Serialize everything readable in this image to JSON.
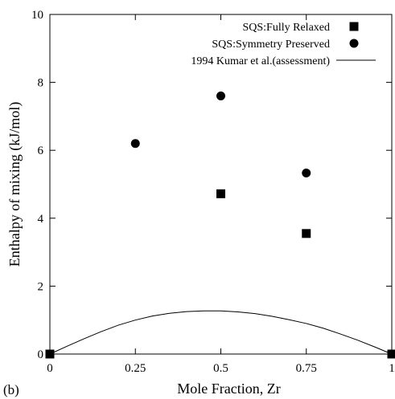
{
  "chart_data": {
    "type": "scatter",
    "panel_label": "(b)",
    "xlabel": "Mole Fraction, Zr",
    "ylabel": "Enthalpy of mixing (kJ/mol)",
    "xlim": [
      0,
      1
    ],
    "ylim": [
      0,
      10
    ],
    "x_ticks": [
      0,
      0.25,
      0.5,
      0.75,
      1
    ],
    "x_tick_labels": [
      "0",
      "0.25",
      "0.5",
      "0.75",
      "1"
    ],
    "y_ticks": [
      0,
      2,
      4,
      6,
      8,
      10
    ],
    "y_tick_labels": [
      "0",
      "2",
      "4",
      "6",
      "8",
      "10"
    ],
    "grid": false,
    "legend_position": "top-right",
    "series": [
      {
        "name": "SQS:Fully Relaxed",
        "marker": "square",
        "color": "#000000",
        "x": [
          0,
          0.5,
          0.75,
          1
        ],
        "y": [
          0,
          4.72,
          3.55,
          0
        ]
      },
      {
        "name": "SQS:Symmetry Preserved",
        "marker": "circle",
        "color": "#000000",
        "x": [
          0.25,
          0.5,
          0.75
        ],
        "y": [
          6.2,
          7.6,
          5.33
        ]
      },
      {
        "name": "1994 Kumar et al.(assessment)",
        "marker": "line",
        "color": "#000000",
        "x": [
          0,
          0.05,
          0.1,
          0.15,
          0.2,
          0.25,
          0.3,
          0.35,
          0.4,
          0.45,
          0.5,
          0.55,
          0.6,
          0.65,
          0.7,
          0.75,
          0.8,
          0.85,
          0.9,
          0.95,
          1
        ],
        "y": [
          0,
          0.23,
          0.45,
          0.66,
          0.85,
          1.0,
          1.12,
          1.2,
          1.25,
          1.27,
          1.27,
          1.24,
          1.19,
          1.11,
          1.01,
          0.9,
          0.76,
          0.59,
          0.41,
          0.21,
          0
        ]
      }
    ]
  }
}
